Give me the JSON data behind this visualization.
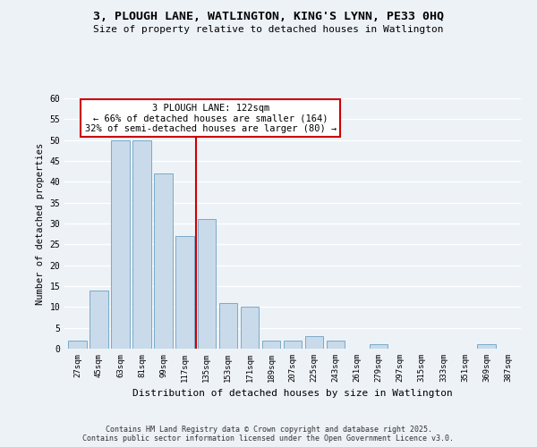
{
  "title": "3, PLOUGH LANE, WATLINGTON, KING'S LYNN, PE33 0HQ",
  "subtitle": "Size of property relative to detached houses in Watlington",
  "xlabel": "Distribution of detached houses by size in Watlington",
  "ylabel": "Number of detached properties",
  "bar_labels": [
    "27sqm",
    "45sqm",
    "63sqm",
    "81sqm",
    "99sqm",
    "117sqm",
    "135sqm",
    "153sqm",
    "171sqm",
    "189sqm",
    "207sqm",
    "225sqm",
    "243sqm",
    "261sqm",
    "279sqm",
    "297sqm",
    "315sqm",
    "333sqm",
    "351sqm",
    "369sqm",
    "387sqm"
  ],
  "bar_values": [
    2,
    14,
    50,
    50,
    42,
    27,
    31,
    11,
    10,
    2,
    2,
    3,
    2,
    0,
    1,
    0,
    0,
    0,
    0,
    1,
    0
  ],
  "bar_color": "#c9daea",
  "bar_edge_color": "#7aaac8",
  "vline_x": 5.5,
  "vline_color": "#cc0000",
  "annotation_title": "3 PLOUGH LANE: 122sqm",
  "annotation_line1": "← 66% of detached houses are smaller (164)",
  "annotation_line2": "32% of semi-detached houses are larger (80) →",
  "annotation_box_color": "#ffffff",
  "annotation_box_edge": "#cc0000",
  "ylim": [
    0,
    60
  ],
  "yticks": [
    0,
    5,
    10,
    15,
    20,
    25,
    30,
    35,
    40,
    45,
    50,
    55,
    60
  ],
  "footer_line1": "Contains HM Land Registry data © Crown copyright and database right 2025.",
  "footer_line2": "Contains public sector information licensed under the Open Government Licence v3.0.",
  "bg_color": "#edf2f7",
  "grid_color": "#ffffff"
}
